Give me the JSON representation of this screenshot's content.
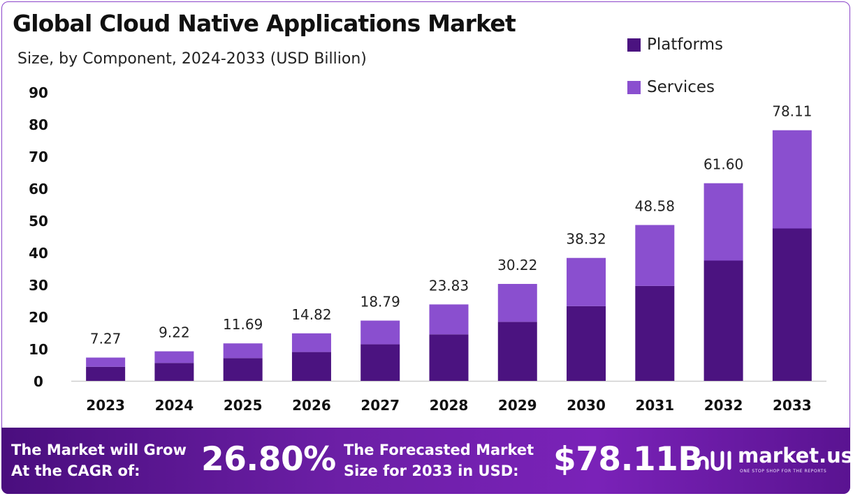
{
  "header": {
    "title": "Global Cloud Native Applications Market",
    "subtitle": "Size, by Component, 2024-2033 (USD Billion)"
  },
  "legend": [
    {
      "label": "Platforms",
      "color": "#4b1380"
    },
    {
      "label": "Services",
      "color": "#8a4fcf"
    }
  ],
  "chart_data": {
    "type": "bar",
    "stacked": true,
    "title": "Global Cloud Native Applications Market",
    "subtitle": "Size, by Component, 2024-2033 (USD Billion)",
    "categories": [
      "2023",
      "2024",
      "2025",
      "2026",
      "2027",
      "2028",
      "2029",
      "2030",
      "2031",
      "2032",
      "2033"
    ],
    "series": [
      {
        "name": "Platforms",
        "color": "#4b1380",
        "values": [
          4.4,
          5.6,
          7.1,
          9.0,
          11.4,
          14.5,
          18.4,
          23.3,
          29.6,
          37.5,
          47.5
        ]
      },
      {
        "name": "Services",
        "color": "#8a4fcf",
        "values": [
          2.87,
          3.62,
          4.59,
          5.82,
          7.39,
          9.33,
          11.82,
          15.02,
          18.98,
          24.1,
          30.61
        ]
      }
    ],
    "totals": [
      "7.27",
      "9.22",
      "11.69",
      "14.82",
      "18.79",
      "23.83",
      "30.22",
      "38.32",
      "48.58",
      "61.60",
      "78.11"
    ],
    "yticks": [
      0,
      10,
      20,
      30,
      40,
      50,
      60,
      70,
      80,
      90
    ],
    "ylim": [
      0,
      90
    ],
    "xlabel": "",
    "ylabel": "",
    "grid": false,
    "legend_position": "top-right"
  },
  "footer": {
    "cagr_line1": "The Market will Grow",
    "cagr_line2": "At the CAGR of:",
    "cagr_value": "26.80%",
    "forecast_line1": "The Forecasted Market",
    "forecast_line2": "Size for 2033 in USD:",
    "forecast_value": "$78.11B",
    "brand_name": "market.us",
    "brand_tagline": "ONE STOP SHOP FOR THE REPORTS"
  }
}
